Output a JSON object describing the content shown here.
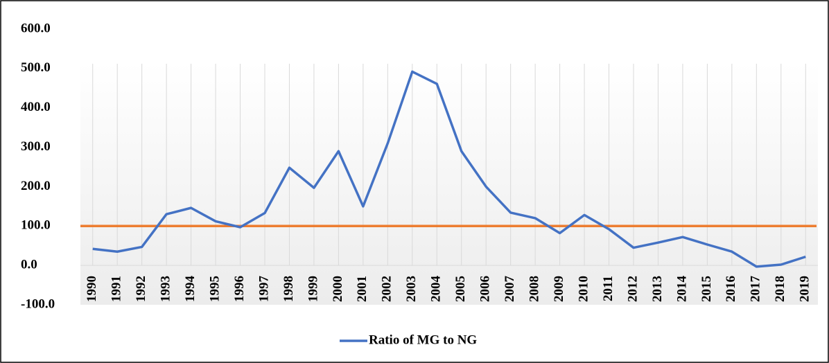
{
  "chart_data": {
    "type": "line",
    "categories": [
      "1990",
      "1991",
      "1992",
      "1993",
      "1994",
      "1995",
      "1996",
      "1997",
      "1998",
      "1999",
      "2000",
      "2001",
      "2002",
      "2003",
      "2004",
      "2005",
      "2006",
      "2007",
      "2008",
      "2009",
      "2010",
      "2011",
      "2012",
      "2013",
      "2014",
      "2015",
      "2016",
      "2017",
      "2018",
      "2019"
    ],
    "series": [
      {
        "name": "Ratio of MG to NG",
        "color": "#4472c4",
        "values": [
          42,
          35,
          47,
          130,
          146,
          112,
          97,
          133,
          248,
          197,
          290,
          150,
          310,
          492,
          461,
          290,
          200,
          134,
          120,
          82,
          128,
          92,
          45,
          58,
          72,
          53,
          35,
          -3,
          2,
          22
        ]
      }
    ],
    "reference_line": {
      "value": 100,
      "color": "#ed7d31"
    },
    "ylim": [
      -100,
      600
    ],
    "yticks": [
      {
        "value": -100,
        "label": "-100.0"
      },
      {
        "value": 0,
        "label": "0.0"
      },
      {
        "value": 100,
        "label": "100.0"
      },
      {
        "value": 200,
        "label": "200.0"
      },
      {
        "value": 300,
        "label": "300.0"
      },
      {
        "value": 400,
        "label": "400.0"
      },
      {
        "value": 500,
        "label": "500.0"
      },
      {
        "value": 600,
        "label": "600.0"
      }
    ],
    "grid": "vertical",
    "legend": "bottom"
  }
}
